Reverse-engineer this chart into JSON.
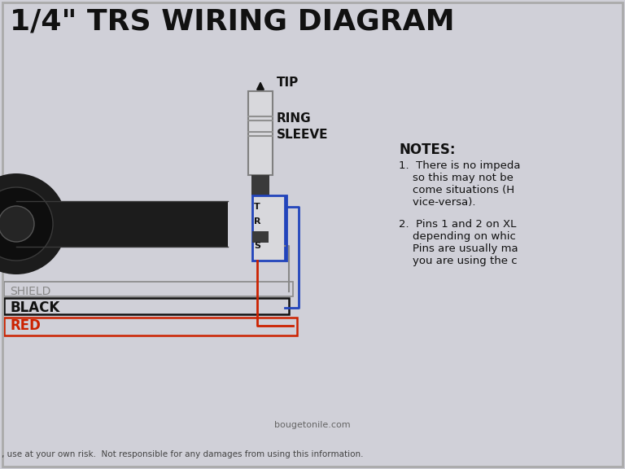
{
  "title": "1/4\" TRS WIRING DIAGRAM",
  "bg_color": "#d0d0d8",
  "title_color": "#111111",
  "notes_title": "NOTES:",
  "note1_lines": [
    "1.  There is no impeda",
    "    so this may not be",
    "    come situations (H",
    "    vice-versa)."
  ],
  "note2_lines": [
    "2.  Pins 1 and 2 on XL",
    "    depending on whic",
    "    Pins are usually ma",
    "    you are using the c"
  ],
  "label_tip": "TIP",
  "label_ring": "RING",
  "label_sleeve": "SLEEVE",
  "label_t": "T",
  "label_r": "R",
  "label_s": "S",
  "label_shield": "SHIELD",
  "label_black": "BLACK",
  "label_red": "RED",
  "footer_site": "bougetonile.com",
  "footer_text": ", use at your own risk.  Not responsible for any damages from using this information.",
  "shield_color": "#888888",
  "black_color": "#111111",
  "red_color": "#cc2200",
  "blue_color": "#2244bb",
  "connector_color": "#3a3a3a",
  "plug_fill": "#d8d8dc",
  "plug_stroke": "#808080",
  "cable_color": "#222222"
}
